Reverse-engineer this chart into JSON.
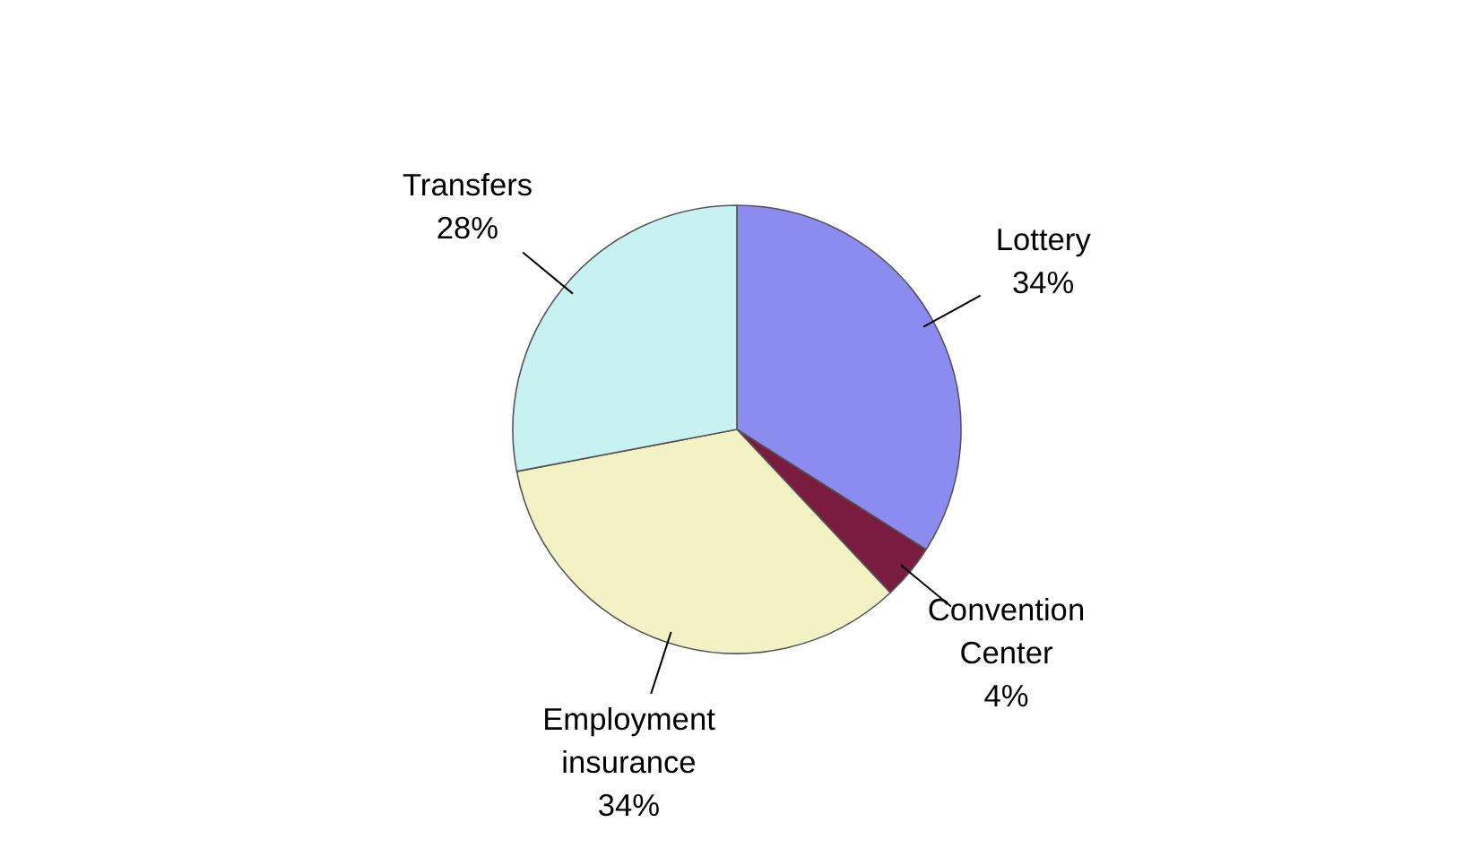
{
  "chart_data": {
    "type": "pie",
    "categories": [
      "Lottery",
      "Convention Center",
      "Employment insurance",
      "Transfers"
    ],
    "values": [
      34,
      4,
      34,
      28
    ],
    "colors": [
      "#8c8cf0",
      "#7a1c40",
      "#f2f2c4",
      "#c8f2f2"
    ],
    "value_labels": [
      "34%",
      "4%",
      "34%",
      "28%"
    ]
  }
}
